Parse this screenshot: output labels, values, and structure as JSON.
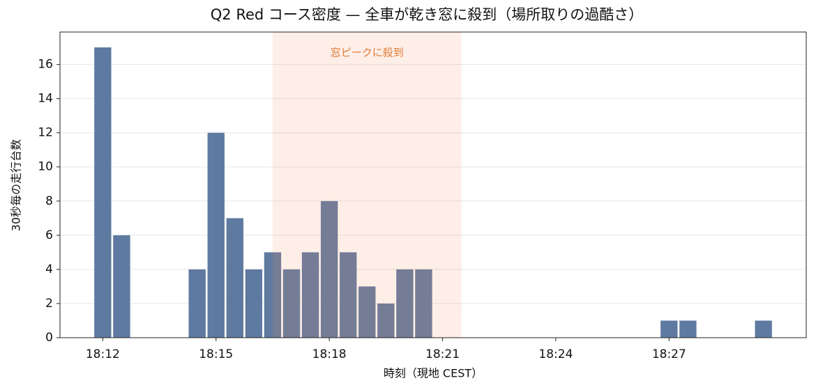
{
  "chart_data": {
    "type": "bar",
    "title": "Q2 Red コース密度 — 全車が乾き窓に殺到（場所取りの過酷さ）",
    "x_label": "時刻（現地 CEST）",
    "y_label": "30秒毎の走行台数",
    "x": [
      "18:12:00",
      "18:12:30",
      "18:14:30",
      "18:15:00",
      "18:15:30",
      "18:16:00",
      "18:16:30",
      "18:17:00",
      "18:17:30",
      "18:18:00",
      "18:18:30",
      "18:19:00",
      "18:19:30",
      "18:20:00",
      "18:20:30",
      "18:27:00",
      "18:27:30",
      "18:29:30"
    ],
    "values": [
      17,
      6,
      4,
      12,
      7,
      4,
      5,
      4,
      5,
      8,
      5,
      3,
      2,
      4,
      4,
      1,
      1,
      1
    ],
    "color": "#5f7aa0",
    "xlim": [
      "18:10:52",
      "18:30:38"
    ],
    "xticks": [
      "18:12",
      "18:15",
      "18:18",
      "18:21",
      "18:24",
      "18:27"
    ],
    "ylim": [
      0,
      17.9
    ],
    "yticks": [
      0,
      2,
      4,
      6,
      8,
      10,
      12,
      14,
      16
    ],
    "grid": true,
    "highlight": {
      "start": "18:16:30",
      "end": "18:21:30",
      "label": "窓ピークに殺到",
      "color": "#f08a5d",
      "label_color": "#e07b39"
    }
  }
}
